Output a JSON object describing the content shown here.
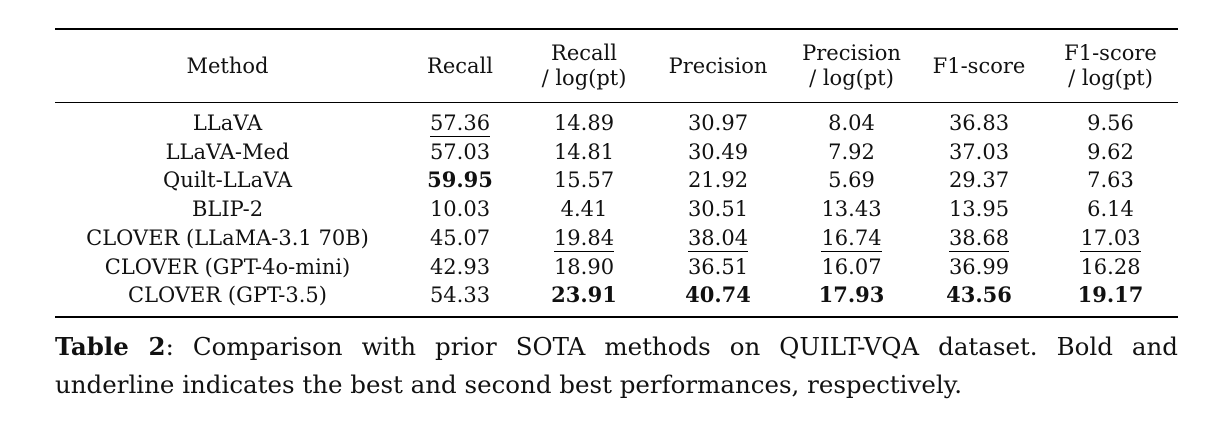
{
  "table": {
    "headers": [
      {
        "line1": "Method",
        "line2": ""
      },
      {
        "line1": "Recall",
        "line2": ""
      },
      {
        "line1": "Recall",
        "line2": "/ log(pt)"
      },
      {
        "line1": "Precision",
        "line2": ""
      },
      {
        "line1": "Precision",
        "line2": "/ log(pt)"
      },
      {
        "line1": "F1-score",
        "line2": ""
      },
      {
        "line1": "F1-score",
        "line2": "/ log(pt)"
      }
    ],
    "rows": [
      {
        "method": "LLaVA",
        "cells": [
          {
            "v": "57.36",
            "s": "underline"
          },
          {
            "v": "14.89",
            "s": ""
          },
          {
            "v": "30.97",
            "s": ""
          },
          {
            "v": "8.04",
            "s": ""
          },
          {
            "v": "36.83",
            "s": ""
          },
          {
            "v": "9.56",
            "s": ""
          }
        ]
      },
      {
        "method": "LLaVA-Med",
        "cells": [
          {
            "v": "57.03",
            "s": ""
          },
          {
            "v": "14.81",
            "s": ""
          },
          {
            "v": "30.49",
            "s": ""
          },
          {
            "v": "7.92",
            "s": ""
          },
          {
            "v": "37.03",
            "s": ""
          },
          {
            "v": "9.62",
            "s": ""
          }
        ]
      },
      {
        "method": "Quilt-LLaVA",
        "cells": [
          {
            "v": "59.95",
            "s": "bold"
          },
          {
            "v": "15.57",
            "s": ""
          },
          {
            "v": "21.92",
            "s": ""
          },
          {
            "v": "5.69",
            "s": ""
          },
          {
            "v": "29.37",
            "s": ""
          },
          {
            "v": "7.63",
            "s": ""
          }
        ]
      },
      {
        "method": "BLIP-2",
        "cells": [
          {
            "v": "10.03",
            "s": ""
          },
          {
            "v": "4.41",
            "s": ""
          },
          {
            "v": "30.51",
            "s": ""
          },
          {
            "v": "13.43",
            "s": ""
          },
          {
            "v": "13.95",
            "s": ""
          },
          {
            "v": "6.14",
            "s": ""
          }
        ]
      },
      {
        "method": "CLOVER (LLaMA-3.1 70B)",
        "cells": [
          {
            "v": "45.07",
            "s": ""
          },
          {
            "v": "19.84",
            "s": "underline"
          },
          {
            "v": "38.04",
            "s": "underline"
          },
          {
            "v": "16.74",
            "s": "underline"
          },
          {
            "v": "38.68",
            "s": "underline"
          },
          {
            "v": "17.03",
            "s": "underline"
          }
        ]
      },
      {
        "method": "CLOVER (GPT-4o-mini)",
        "cells": [
          {
            "v": "42.93",
            "s": ""
          },
          {
            "v": "18.90",
            "s": ""
          },
          {
            "v": "36.51",
            "s": ""
          },
          {
            "v": "16.07",
            "s": ""
          },
          {
            "v": "36.99",
            "s": ""
          },
          {
            "v": "16.28",
            "s": ""
          }
        ]
      },
      {
        "method": "CLOVER (GPT-3.5)",
        "cells": [
          {
            "v": "54.33",
            "s": ""
          },
          {
            "v": "23.91",
            "s": "bold"
          },
          {
            "v": "40.74",
            "s": "bold"
          },
          {
            "v": "17.93",
            "s": "bold"
          },
          {
            "v": "43.56",
            "s": "bold"
          },
          {
            "v": "19.17",
            "s": "bold"
          }
        ]
      }
    ]
  },
  "caption": {
    "label": "Table 2",
    "text": ": Comparison with prior SOTA methods on QUILT-VQA dataset. Bold and underline indicates the best and second best performances, respectively."
  }
}
